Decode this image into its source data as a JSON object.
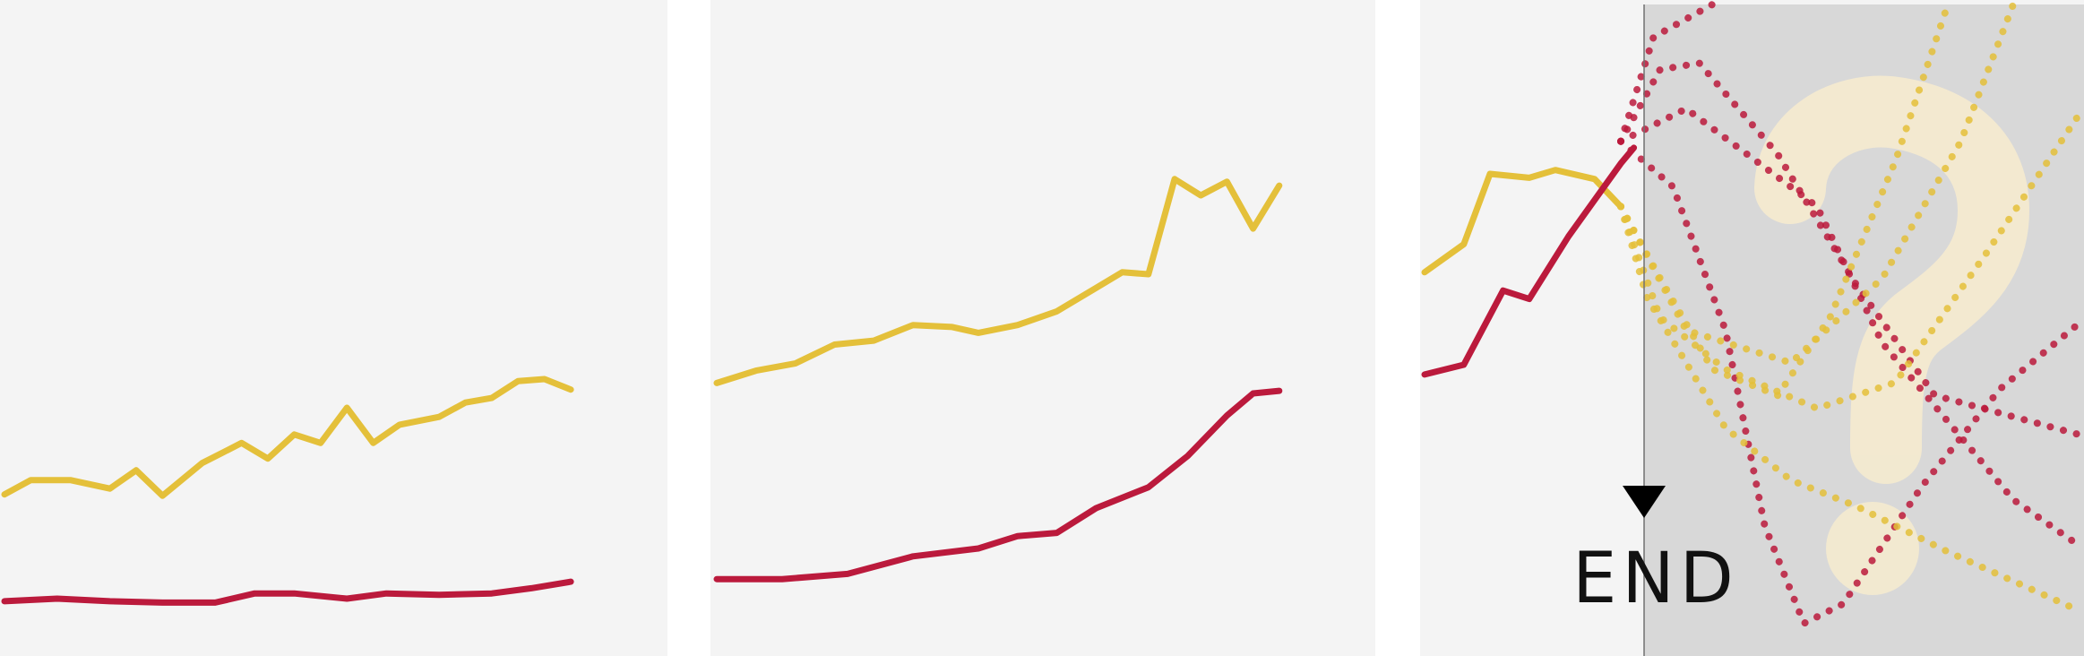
{
  "chart_data": {
    "type": "line",
    "title": "",
    "xlabel": "",
    "ylabel": "",
    "grid": false,
    "ylim": [
      0,
      100
    ],
    "end_label": "END",
    "unknown_region_symbol": "?",
    "series": [
      {
        "color": "#e4c03a",
        "panels": [
          [
            [
              0,
              24.8
            ],
            [
              4,
              27.0
            ],
            [
              10,
              27.0
            ],
            [
              16,
              25.7
            ],
            [
              20,
              28.5
            ],
            [
              24,
              24.6
            ],
            [
              30,
              29.6
            ],
            [
              36,
              32.7
            ],
            [
              40,
              30.3
            ],
            [
              44,
              34.0
            ],
            [
              48,
              32.7
            ],
            [
              52,
              38.1
            ],
            [
              56,
              32.7
            ],
            [
              60,
              35.5
            ],
            [
              66,
              36.7
            ],
            [
              70,
              38.9
            ],
            [
              74,
              39.6
            ],
            [
              78,
              42.2
            ],
            [
              82,
              42.5
            ],
            [
              86,
              40.9
            ]
          ],
          [
            [
              0,
              41.9
            ],
            [
              6,
              43.8
            ],
            [
              12,
              44.9
            ],
            [
              18,
              47.8
            ],
            [
              24,
              48.4
            ],
            [
              30,
              50.8
            ],
            [
              36,
              50.5
            ],
            [
              40,
              49.6
            ],
            [
              46,
              50.8
            ],
            [
              52,
              52.9
            ],
            [
              58,
              56.5
            ],
            [
              62,
              58.9
            ],
            [
              66,
              58.6
            ],
            [
              70,
              73.2
            ],
            [
              74,
              70.7
            ],
            [
              78,
              72.8
            ],
            [
              82,
              65.6
            ],
            [
              86,
              72.2
            ]
          ],
          [
            [
              0,
              58.9
            ],
            [
              6,
              63.2
            ],
            [
              10,
              74.0
            ],
            [
              16,
              73.4
            ],
            [
              20,
              74.6
            ],
            [
              26,
              73.2
            ],
            [
              30,
              69.0
            ]
          ]
        ]
      },
      {
        "color": "#bb1a3c",
        "panels": [
          [
            [
              0,
              8.4
            ],
            [
              8,
              8.8
            ],
            [
              16,
              8.4
            ],
            [
              24,
              8.2
            ],
            [
              32,
              8.2
            ],
            [
              38,
              9.6
            ],
            [
              44,
              9.6
            ],
            [
              52,
              8.8
            ],
            [
              58,
              9.6
            ],
            [
              66,
              9.4
            ],
            [
              74,
              9.6
            ],
            [
              80,
              10.4
            ],
            [
              86,
              11.4
            ]
          ],
          [
            [
              0,
              11.8
            ],
            [
              10,
              11.8
            ],
            [
              20,
              12.6
            ],
            [
              30,
              15.3
            ],
            [
              40,
              16.5
            ],
            [
              46,
              18.4
            ],
            [
              52,
              18.9
            ],
            [
              58,
              22.7
            ],
            [
              66,
              25.9
            ],
            [
              72,
              30.7
            ],
            [
              78,
              36.9
            ],
            [
              82,
              40.3
            ],
            [
              86,
              40.7
            ]
          ],
          [
            [
              0,
              43.2
            ],
            [
              6,
              44.7
            ],
            [
              12,
              56.1
            ],
            [
              16,
              54.8
            ],
            [
              22,
              64.4
            ],
            [
              30,
              75.6
            ],
            [
              32,
              78.0
            ]
          ]
        ]
      }
    ],
    "hypothetical_series": [
      {
        "color": "#bb1a3c",
        "points": [
          [
            30,
            79
          ],
          [
            35,
            95
          ],
          [
            44,
            100
          ]
        ]
      },
      {
        "color": "#bb1a3c",
        "points": [
          [
            30,
            79
          ],
          [
            40,
            84
          ],
          [
            60,
            69
          ],
          [
            70,
            48
          ],
          [
            90,
            24
          ],
          [
            100,
            17
          ]
        ]
      },
      {
        "color": "#bb1a3c",
        "points": [
          [
            30,
            79
          ],
          [
            38,
            72
          ],
          [
            46,
            50
          ],
          [
            52,
            20
          ],
          [
            58,
            5
          ],
          [
            64,
            8
          ],
          [
            76,
            26
          ],
          [
            88,
            41
          ],
          [
            100,
            51
          ]
        ]
      },
      {
        "color": "#bb1a3c",
        "points": [
          [
            30,
            79
          ],
          [
            36,
            90
          ],
          [
            42,
            91
          ],
          [
            54,
            77
          ],
          [
            66,
            57
          ],
          [
            78,
            40
          ],
          [
            100,
            34
          ]
        ]
      },
      {
        "color": "#e4c03a",
        "points": [
          [
            30,
            69
          ],
          [
            36,
            58
          ],
          [
            44,
            44
          ],
          [
            54,
            40
          ],
          [
            62,
            52
          ],
          [
            72,
            76
          ],
          [
            80,
            100
          ]
        ]
      },
      {
        "color": "#e4c03a",
        "points": [
          [
            30,
            69
          ],
          [
            36,
            52
          ],
          [
            46,
            44
          ],
          [
            60,
            38
          ],
          [
            72,
            42
          ],
          [
            86,
            62
          ],
          [
            100,
            83
          ]
        ]
      },
      {
        "color": "#e4c03a",
        "points": [
          [
            30,
            69
          ],
          [
            34,
            55
          ],
          [
            46,
            35
          ],
          [
            56,
            27
          ],
          [
            66,
            23
          ],
          [
            80,
            16
          ],
          [
            100,
            7
          ]
        ]
      },
      {
        "color": "#e4c03a",
        "points": [
          [
            30,
            69
          ],
          [
            40,
            50
          ],
          [
            56,
            45
          ],
          [
            70,
            58
          ],
          [
            82,
            79
          ],
          [
            90,
            100
          ]
        ]
      }
    ]
  }
}
